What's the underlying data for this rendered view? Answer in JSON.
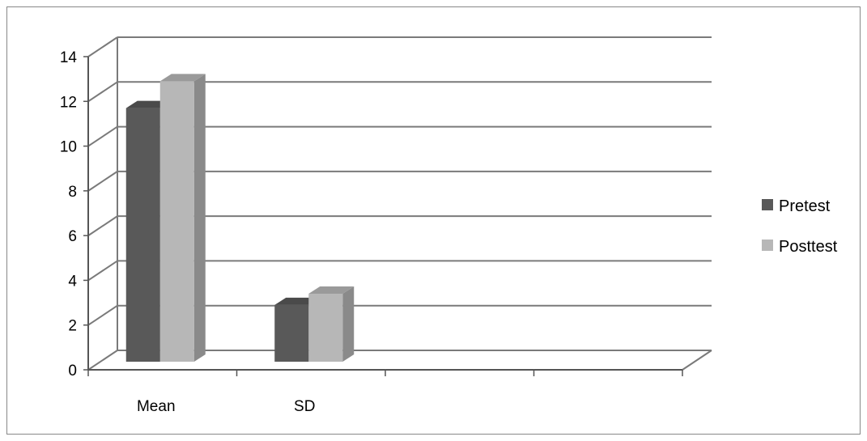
{
  "chart_data": {
    "type": "bar",
    "style": "3d-clustered-column",
    "categories": [
      "Mean",
      "SD"
    ],
    "extra_empty_category_slots": 2,
    "series": [
      {
        "name": "Pretest",
        "values": [
          11.7,
          2.9
        ]
      },
      {
        "name": "Posttest",
        "values": [
          12.9,
          3.4
        ]
      }
    ],
    "ylim": [
      0,
      14
    ],
    "yticks": [
      0,
      2,
      4,
      6,
      8,
      10,
      12,
      14
    ],
    "grid": true,
    "legend_position": "right",
    "title": "",
    "xlabel": "",
    "ylabel": ""
  },
  "colors": {
    "series": [
      "#595959",
      "#b7b7b7"
    ],
    "series_dark": [
      "#3e3e3e",
      "#8a8a8a"
    ],
    "series_top": [
      "#4a4a4a",
      "#9a9a9a"
    ],
    "gridline": "#7a7a7a",
    "axis": "#555555",
    "frame": "#888888"
  }
}
